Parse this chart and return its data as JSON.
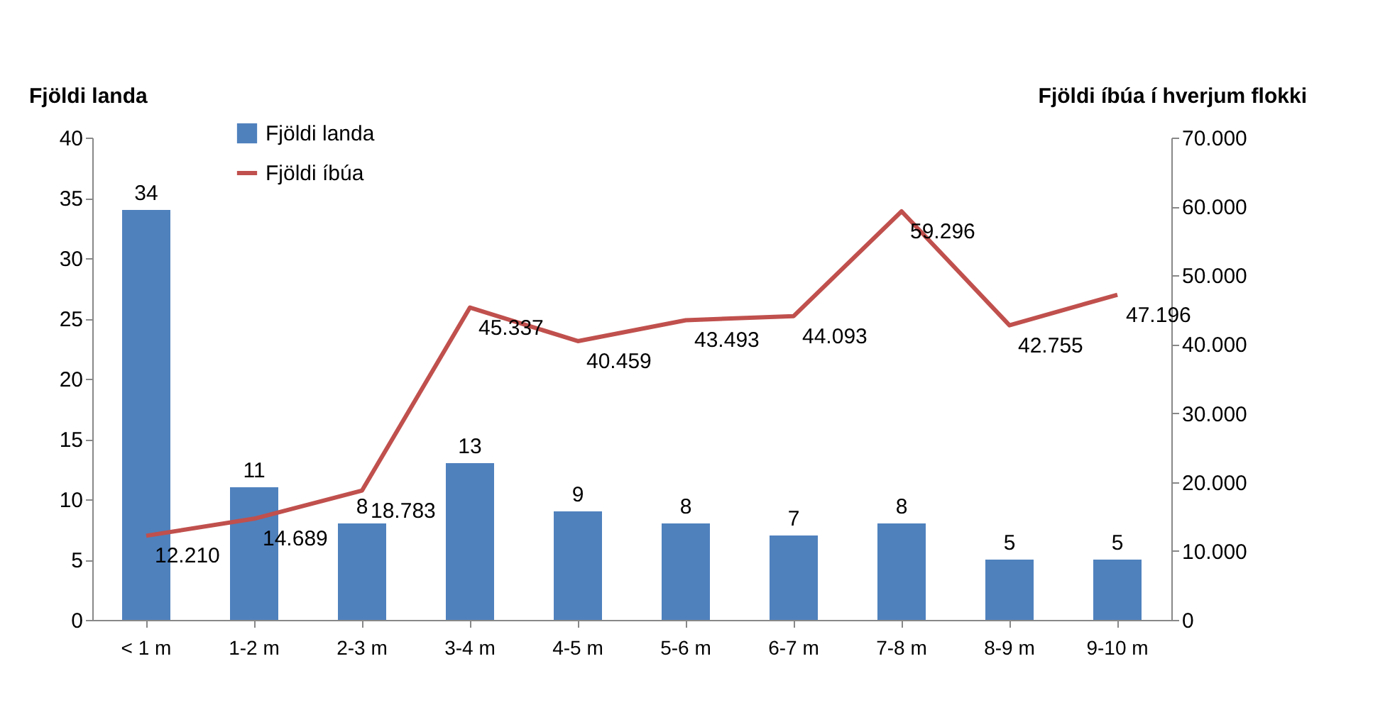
{
  "chart_data": {
    "type": "bar",
    "ylabel": "Fjöldi landa",
    "y2label": "Fjöldi íbúa í hverjum flokki",
    "categories": [
      "< 1 m",
      "1-2 m",
      "2-3 m",
      "3-4 m",
      "4-5 m",
      "5-6 m",
      "6-7 m",
      "7-8 m",
      "8-9 m",
      "9-10 m"
    ],
    "series": [
      {
        "name": "Fjöldi landa",
        "color": "#4f81bd",
        "values": [
          34,
          11,
          8,
          13,
          9,
          8,
          7,
          8,
          5,
          5
        ]
      },
      {
        "name": "Fjöldi íbúa",
        "type": "line",
        "axis": "y2",
        "color": "#c0504d",
        "values": [
          12210,
          14689,
          18783,
          45337,
          40459,
          43493,
          44093,
          59296,
          42755,
          47196
        ],
        "value_labels": [
          "12.210",
          "14.689",
          "18.783",
          "45.337",
          "40.459",
          "43.493",
          "44.093",
          "59.296",
          "42.755",
          "47.196"
        ]
      }
    ],
    "data_labels": true,
    "ylim": [
      0,
      40
    ],
    "yticks": [
      0,
      5,
      10,
      15,
      20,
      25,
      30,
      35,
      40
    ],
    "y2lim": [
      0,
      70000
    ],
    "y2ticks": [
      0,
      {
        "value": 10000,
        "label": "10.000"
      },
      {
        "value": 20000,
        "label": "20.000"
      },
      {
        "value": 30000,
        "label": "30.000"
      },
      {
        "value": 40000,
        "label": "40.000"
      },
      {
        "value": 50000,
        "label": "50.000"
      },
      {
        "value": 60000,
        "label": "60.000"
      },
      {
        "value": 70000,
        "label": "70.000"
      }
    ],
    "grid": false,
    "legend": "top left",
    "marker": "none",
    "line_style": "solid"
  }
}
